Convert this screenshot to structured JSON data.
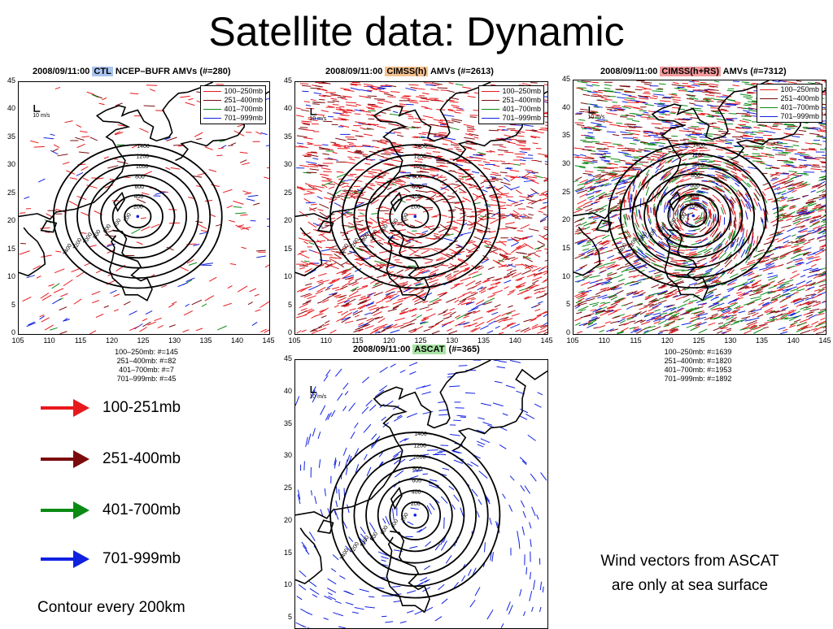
{
  "slide": {
    "title": "Satellite data: Dynamic"
  },
  "panels": [
    {
      "id": "ctl",
      "prefix": "2008/09/11:00 ",
      "tag": "CTL",
      "tag_color": "#a9c4ef",
      "suffix": " NCEP–BUFR AMVs (#=280)",
      "counts": [
        "100–250mb: #=145",
        "251–400mb: #=82",
        "401–700mb: #=7",
        "701–999mb: #=45"
      ]
    },
    {
      "id": "cimss_h",
      "prefix": "2008/09/11:00 ",
      "tag": "CIMSS(h)",
      "tag_color": "#f5c28f",
      "suffix": " AMVs (#=2613)",
      "counts": []
    },
    {
      "id": "cimss_hrs",
      "prefix": "2008/09/11:00 ",
      "tag": "CIMSS(h+RS)",
      "tag_color": "#f2999b",
      "suffix": " AMVs (#=7312)",
      "counts": [
        "100–250mb: #=1639",
        "251–400mb: #=1820",
        "401–700mb: #=1953",
        "701–999mb: #=1892"
      ]
    },
    {
      "id": "ascat",
      "prefix": "2008/09/11:00 ",
      "tag": "ASCAT",
      "tag_color": "#a8e3a3",
      "suffix": " (#=365)",
      "counts": []
    }
  ],
  "plot_legend": [
    "100–250mb",
    "251–400mb",
    "401–700mb",
    "701–999mb"
  ],
  "scale_label": "10 m/s",
  "yticks": [
    "45",
    "40",
    "35",
    "30",
    "25",
    "20",
    "15",
    "10",
    "5",
    "0"
  ],
  "xticks": [
    "105",
    "110",
    "115",
    "120",
    "125",
    "130",
    "135",
    "140",
    "145"
  ],
  "ascat_yticks": [
    "45",
    "40",
    "35",
    "30",
    "25",
    "20",
    "15",
    "10",
    "5"
  ],
  "contour_labels": [
    "200",
    "400",
    "600",
    "800",
    "1000",
    "1200",
    "1400"
  ],
  "arrow_legend": [
    {
      "label": "100-251mb",
      "color": "#e8191d"
    },
    {
      "label": "251-400mb",
      "color": "#7b0a0d"
    },
    {
      "label": "401-700mb",
      "color": "#0b8a14"
    },
    {
      "label": "701-999mb",
      "color": "#1021e0"
    }
  ],
  "notes": {
    "contour": "Contour every 200km",
    "ascat_line1": "Wind vectors from ASCAT",
    "ascat_line2": "are only at sea surface"
  }
}
